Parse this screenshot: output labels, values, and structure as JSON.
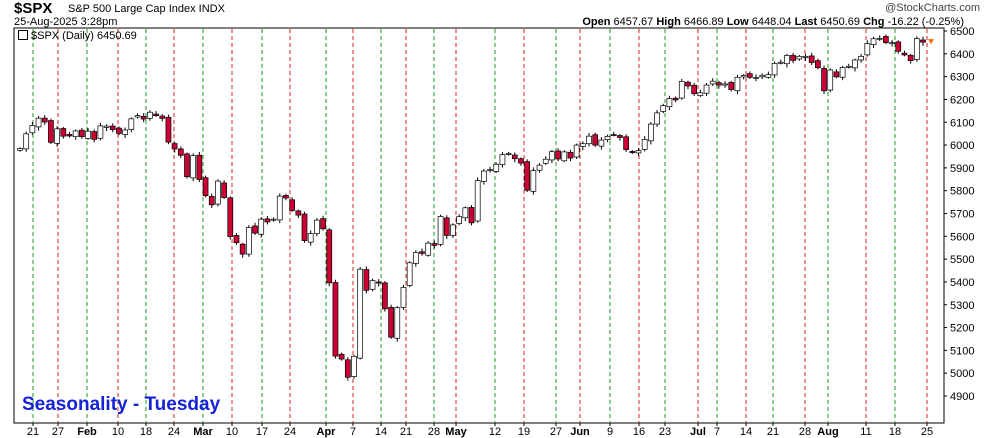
{
  "header": {
    "ticker": "$SPX",
    "name": "S&P 500 Large Cap Index  INDX",
    "timestamp": "25-Aug-2025 3:28pm",
    "watermark": "@StockCharts.com",
    "open_label": "Open",
    "open_value": "6457.67",
    "high_label": "High",
    "high_value": "6466.89",
    "low_label": "Low",
    "low_value": "6448.04",
    "last_label": "Last",
    "last_value": "6450.69",
    "chg_label": "Chg",
    "chg_value": "-16.22 (-0.25%)"
  },
  "legend": {
    "label": "$SPX (Daily) 6450.69"
  },
  "seasonality_label": "Seasonality - Tuesday",
  "colors": {
    "up_candle": "#ffffff",
    "down_candle": "#cc0033",
    "green_gridline": "#1a9a1a",
    "red_gridline": "#d42020",
    "seasonality_text": "#1522d8"
  },
  "chart_data": {
    "type": "candlestick",
    "ylim": [
      4800,
      6550
    ],
    "yticks": [
      4900,
      5000,
      5100,
      5200,
      5300,
      5400,
      5500,
      5600,
      5700,
      5800,
      5900,
      6000,
      6100,
      6200,
      6300,
      6400,
      6500
    ],
    "xticks": [
      {
        "label": "21",
        "bold": false
      },
      {
        "label": "27",
        "bold": false
      },
      {
        "label": "Feb",
        "bold": true
      },
      {
        "label": "10",
        "bold": false
      },
      {
        "label": "18",
        "bold": false
      },
      {
        "label": "24",
        "bold": false
      },
      {
        "label": "Mar",
        "bold": true
      },
      {
        "label": "10",
        "bold": false
      },
      {
        "label": "17",
        "bold": false
      },
      {
        "label": "24",
        "bold": false
      },
      {
        "label": "Apr",
        "bold": true
      },
      {
        "label": "7",
        "bold": false
      },
      {
        "label": "14",
        "bold": false
      },
      {
        "label": "21",
        "bold": false
      },
      {
        "label": "28",
        "bold": false
      },
      {
        "label": "May",
        "bold": true
      },
      {
        "label": "12",
        "bold": false
      },
      {
        "label": "19",
        "bold": false
      },
      {
        "label": "27",
        "bold": false
      },
      {
        "label": "Jun",
        "bold": true
      },
      {
        "label": "9",
        "bold": false
      },
      {
        "label": "16",
        "bold": false
      },
      {
        "label": "23",
        "bold": false
      },
      {
        "label": "Jul",
        "bold": true
      },
      {
        "label": "7",
        "bold": false
      },
      {
        "label": "14",
        "bold": false
      },
      {
        "label": "21",
        "bold": false
      },
      {
        "label": "28",
        "bold": false
      },
      {
        "label": "Aug",
        "bold": true
      },
      {
        "label": "11",
        "bold": false
      },
      {
        "label": "18",
        "bold": false
      },
      {
        "label": "25",
        "bold": false
      }
    ],
    "gridlines": "alternating green / red dashed vertical lines marking Tuesdays",
    "grid": true,
    "yaxis_side": "right",
    "closes": [
      5985,
      6049,
      6086,
      6118,
      6101,
      6012,
      6071,
      6039,
      6040,
      6062,
      6037,
      6061,
      6025,
      6084,
      6083,
      6068,
      6051,
      6066,
      6115,
      6129,
      6114,
      6144,
      6129,
      6117,
      6013,
      5983,
      5955,
      5861,
      5954,
      5849,
      5778,
      5738,
      5842,
      5770,
      5599,
      5572,
      5522,
      5639,
      5614,
      5675,
      5663,
      5675,
      5776,
      5768,
      5713,
      5693,
      5581,
      5612,
      5671,
      5633,
      5396,
      5075,
      5062,
      4982,
      5074,
      5456,
      5363,
      5406,
      5396,
      5282,
      5158,
      5287,
      5376,
      5484,
      5529,
      5525,
      5570,
      5560,
      5687,
      5604,
      5650,
      5686,
      5725,
      5659,
      5844,
      5886,
      5892,
      5916,
      5958,
      5963,
      5940,
      5921,
      5802,
      5888,
      5912,
      5938,
      5971,
      5939,
      5970,
      5943,
      6000,
      6006,
      6039,
      6000,
      6022,
      6038,
      6045,
      6033,
      5980,
      5967,
      5976,
      6025,
      6092,
      6141,
      6173,
      6204,
      6198,
      6279,
      6259,
      6225,
      6229,
      6263,
      6280,
      6263,
      6268,
      6243,
      6297,
      6305,
      6297,
      6296,
      6305,
      6309,
      6358,
      6363,
      6393,
      6371,
      6389,
      6389,
      6362,
      6339,
      6238,
      6329,
      6299,
      6340,
      6345,
      6373,
      6389,
      6445,
      6466,
      6468,
      6449,
      6449,
      6411,
      6395,
      6370,
      6467,
      6451
    ]
  }
}
